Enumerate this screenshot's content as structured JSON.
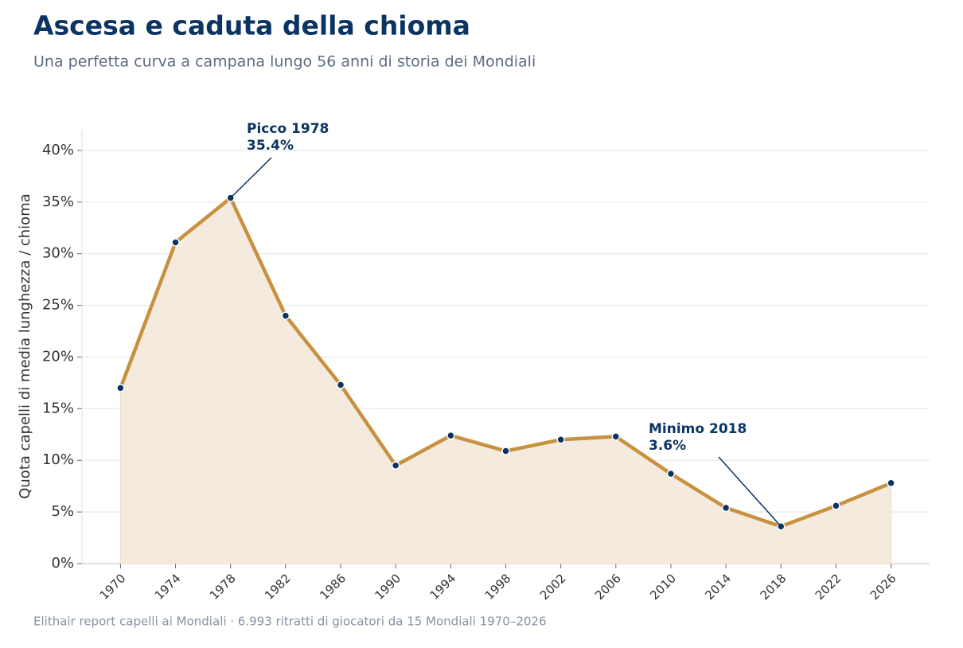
{
  "chart_data": {
    "type": "line",
    "title": "Ascesa e caduta della chioma",
    "subtitle": "Una perfetta curva a campana lungo 56 anni di storia dei Mondiali",
    "y_label": "Quota capelli di media lunghezza / chioma",
    "source": "Elithair report capelli ai Mondiali  ·  6.993 ritratti di giocatori da 15 Mondiali 1970–2026",
    "x": [
      1970,
      1974,
      1978,
      1982,
      1986,
      1990,
      1994,
      1998,
      2002,
      2006,
      2010,
      2014,
      2018,
      2022,
      2026
    ],
    "series": [
      {
        "color": "#c8913f",
        "fill": "#f4eadd",
        "marker_color": "#0b3463",
        "values": [
          17.0,
          31.1,
          35.4,
          24.0,
          17.3,
          9.5,
          12.4,
          10.9,
          12.0,
          12.3,
          8.7,
          5.4,
          3.6,
          5.6,
          7.8
        ]
      }
    ],
    "xlim": [
      1967.2,
      2028.8
    ],
    "xticks": [
      1970,
      1974,
      1978,
      1982,
      1986,
      1990,
      1994,
      1998,
      2002,
      2006,
      2010,
      2014,
      2018,
      2022,
      2026
    ],
    "ylim": [
      0,
      42
    ],
    "yticks": [
      {
        "value": 0,
        "label": "0%"
      },
      {
        "value": 5,
        "label": "5%"
      },
      {
        "value": 10,
        "label": "10%"
      },
      {
        "value": 15,
        "label": "15%"
      },
      {
        "value": 20,
        "label": "20%"
      },
      {
        "value": 25,
        "label": "25%"
      },
      {
        "value": 30,
        "label": "30%"
      },
      {
        "value": 35,
        "label": "35%"
      },
      {
        "value": 40,
        "label": "40%"
      }
    ],
    "grid": true,
    "annotations": [
      {
        "title": "Picco 1978",
        "label": "35.4%",
        "x": 1978,
        "y": 35.4
      },
      {
        "title": "Minimo 2018",
        "label": "3.6%",
        "x": 2018,
        "y": 3.6
      }
    ]
  }
}
